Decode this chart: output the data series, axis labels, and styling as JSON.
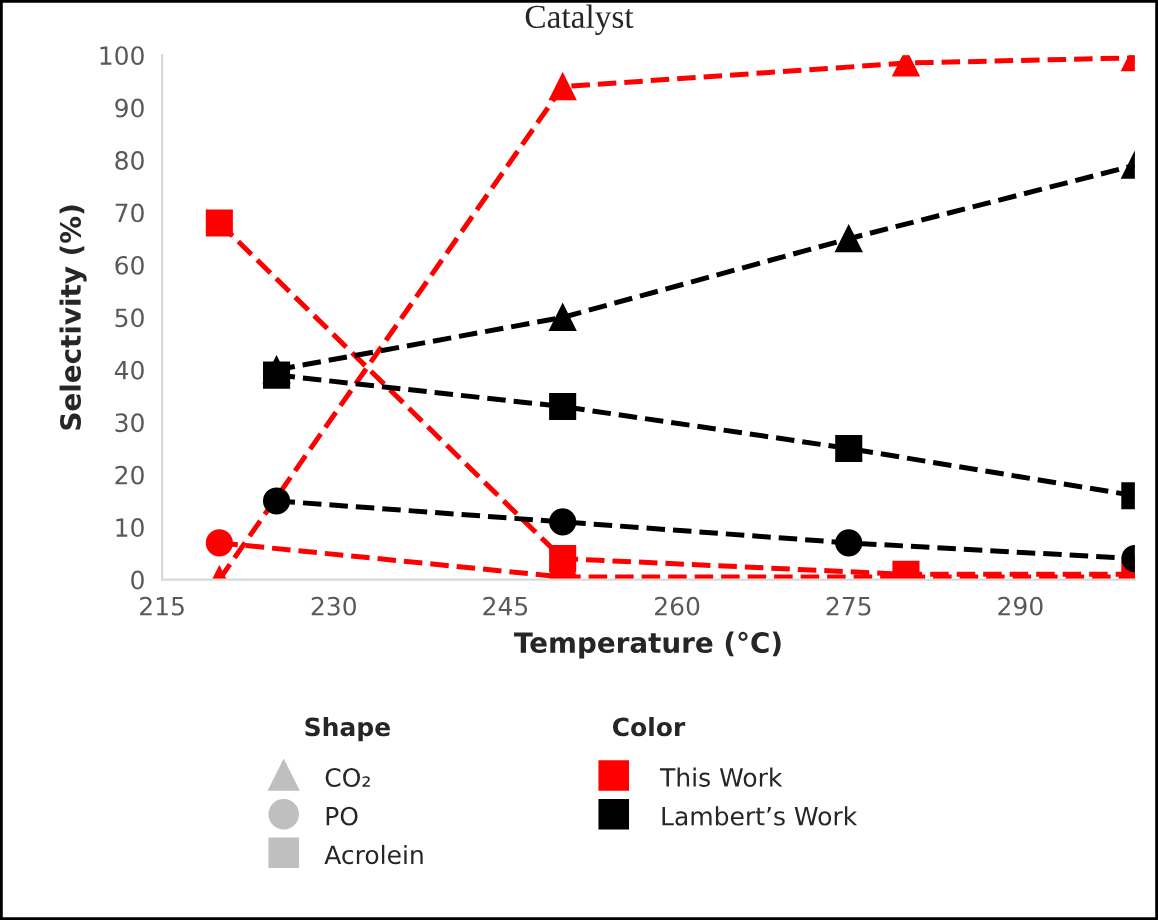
{
  "chart_data": {
    "type": "line",
    "title": "Catalyst",
    "xlabel": "Temperature (°C)",
    "ylabel": "Selectivity (%)",
    "series": [
      {
        "color": "#ff0000",
        "marker": "triangle",
        "x": [
          220,
          250,
          280,
          300
        ],
        "values": [
          0,
          94,
          98.5,
          99.5
        ]
      },
      {
        "color": "#ff0000",
        "marker": "circle",
        "x": [
          220,
          250,
          280,
          300
        ],
        "values": [
          7,
          0.5,
          0.5,
          0.5
        ]
      },
      {
        "color": "#ff0000",
        "marker": "square",
        "x": [
          220,
          250,
          280,
          300
        ],
        "values": [
          68,
          4,
          1,
          1
        ]
      },
      {
        "color": "#000000",
        "marker": "triangle",
        "x": [
          225,
          250,
          275,
          300
        ],
        "values": [
          40,
          50,
          65,
          79
        ]
      },
      {
        "color": "#000000",
        "marker": "circle",
        "x": [
          225,
          250,
          275,
          300
        ],
        "values": [
          15,
          11,
          7,
          4
        ]
      },
      {
        "color": "#000000",
        "marker": "square",
        "x": [
          225,
          250,
          275,
          300
        ],
        "values": [
          39,
          33,
          25,
          16
        ]
      }
    ],
    "line_style": "dashed",
    "xlim": [
      215,
      300
    ],
    "xticks": [
      215,
      230,
      245,
      260,
      275,
      290
    ],
    "ylim": [
      0,
      100
    ],
    "yticks": [
      0,
      10,
      20,
      30,
      40,
      50,
      60,
      70,
      80,
      90,
      100
    ],
    "grid": false,
    "annotations": [
      "Shape",
      "CO₂",
      "PO",
      "Acrolein",
      "Color",
      "This Work",
      "Lambert’s Work"
    ]
  }
}
